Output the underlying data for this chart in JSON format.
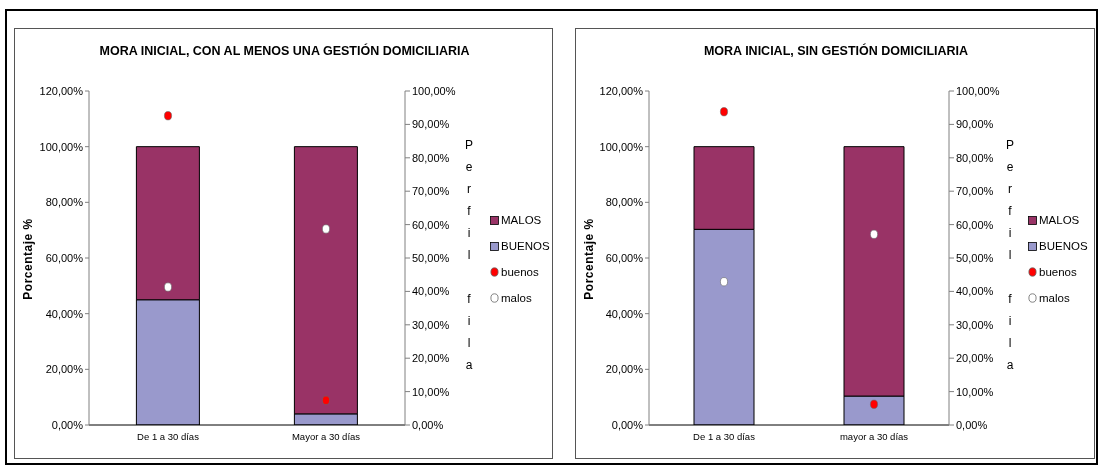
{
  "chart_data": [
    {
      "type": "bar",
      "title": "MORA INICIAL, CON AL MENOS UNA GESTIÓN DOMICILIARIA",
      "ylabel": "Porcentaje %",
      "y2label": "Perfil fila",
      "categories": [
        "De 1 a 30 días",
        "Mayor a 30 días"
      ],
      "stacked": true,
      "legend": "right",
      "marker": "circle",
      "ylim": [
        0,
        120
      ],
      "yticks": [
        {
          "value": 0,
          "label": "0,00%"
        },
        {
          "value": 20,
          "label": "20,00%"
        },
        {
          "value": 40,
          "label": "40,00%"
        },
        {
          "value": 60,
          "label": "60,00%"
        },
        {
          "value": 80,
          "label": "80,00%"
        },
        {
          "value": 100,
          "label": "100,00%"
        },
        {
          "value": 120,
          "label": "120,00%"
        }
      ],
      "y2lim": [
        0,
        100
      ],
      "y2ticks": [
        {
          "value": 0,
          "label": "0,00%"
        },
        {
          "value": 10,
          "label": "10,00%"
        },
        {
          "value": 20,
          "label": "20,00%"
        },
        {
          "value": 30,
          "label": "30,00%"
        },
        {
          "value": 40,
          "label": "40,00%"
        },
        {
          "value": 50,
          "label": "50,00%"
        },
        {
          "value": 60,
          "label": "60,00%"
        },
        {
          "value": 70,
          "label": "70,00%"
        },
        {
          "value": 80,
          "label": "80,00%"
        },
        {
          "value": 90,
          "label": "90,00%"
        },
        {
          "value": 100,
          "label": "100,00%"
        }
      ],
      "series": [
        {
          "name": "BUENOS",
          "color": "#9999cc",
          "values": [
            45,
            4
          ]
        },
        {
          "name": "MALOS",
          "color": "#993366",
          "values": [
            55,
            96
          ]
        },
        {
          "name": "buenos",
          "type": "scatter",
          "axis": "y2",
          "color": "#ff0000",
          "x": [
            "De 1 a 30 días",
            "Mayor a 30 días"
          ],
          "values": [
            92.6,
            7.4
          ]
        },
        {
          "name": "malos",
          "type": "scatter",
          "axis": "y2",
          "color": "#ffffff",
          "x": [
            "De 1 a 30 días",
            "Mayor a 30 días"
          ],
          "values": [
            41.3,
            58.7
          ]
        }
      ]
    },
    {
      "type": "bar",
      "title": "MORA INICIAL, SIN GESTIÓN DOMICILIARIA",
      "ylabel": "Porcentaje %",
      "y2label": "Perfil fila",
      "categories": [
        "De 1 a 30 días",
        "mayor a 30 días"
      ],
      "stacked": true,
      "legend": "right",
      "marker": "circle",
      "ylim": [
        0,
        120
      ],
      "yticks": [
        {
          "value": 0,
          "label": "0,00%"
        },
        {
          "value": 20,
          "label": "20,00%"
        },
        {
          "value": 40,
          "label": "40,00%"
        },
        {
          "value": 60,
          "label": "60,00%"
        },
        {
          "value": 80,
          "label": "80,00%"
        },
        {
          "value": 100,
          "label": "100,00%"
        },
        {
          "value": 120,
          "label": "120,00%"
        }
      ],
      "y2lim": [
        0,
        100
      ],
      "y2ticks": [
        {
          "value": 0,
          "label": "0,00%"
        },
        {
          "value": 10,
          "label": "10,00%"
        },
        {
          "value": 20,
          "label": "20,00%"
        },
        {
          "value": 30,
          "label": "30,00%"
        },
        {
          "value": 40,
          "label": "40,00%"
        },
        {
          "value": 50,
          "label": "50,00%"
        },
        {
          "value": 60,
          "label": "60,00%"
        },
        {
          "value": 70,
          "label": "70,00%"
        },
        {
          "value": 80,
          "label": "80,00%"
        },
        {
          "value": 90,
          "label": "90,00%"
        },
        {
          "value": 100,
          "label": "100,00%"
        }
      ],
      "series": [
        {
          "name": "BUENOS",
          "color": "#9999cc",
          "values": [
            70.3,
            10.4
          ]
        },
        {
          "name": "MALOS",
          "color": "#993366",
          "values": [
            29.7,
            89.6
          ]
        },
        {
          "name": "buenos",
          "type": "scatter",
          "axis": "y2",
          "color": "#ff0000",
          "x": [
            "De 1 a 30 días",
            "mayor a 30 días"
          ],
          "values": [
            93.8,
            6.2
          ]
        },
        {
          "name": "malos",
          "type": "scatter",
          "axis": "y2",
          "color": "#ffffff",
          "x": [
            "De 1 a 30 días",
            "mayor a 30 días"
          ],
          "values": [
            42.9,
            57.1
          ]
        }
      ]
    }
  ]
}
